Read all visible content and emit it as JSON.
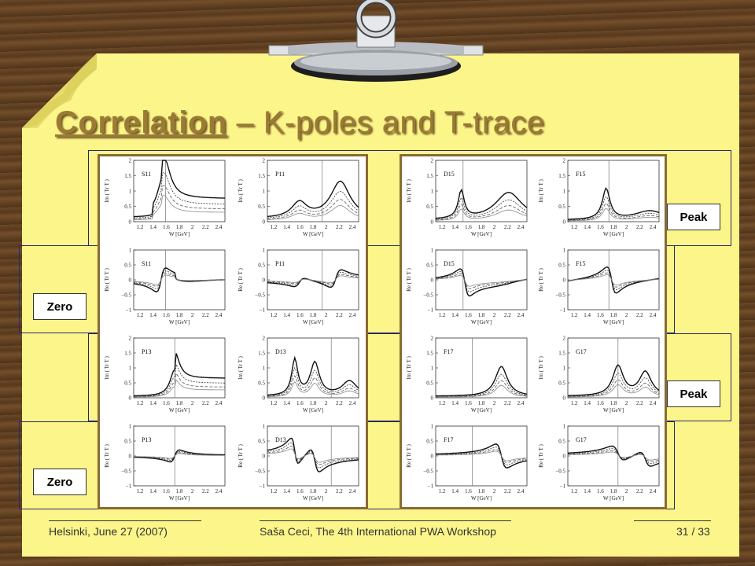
{
  "slide": {
    "title_underlined": "Correlation",
    "title_rest": " – K-poles and T-trace"
  },
  "labels": {
    "peak_top": "Peak",
    "zero_upper": "Zero",
    "peak_lower": "Peak",
    "zero_lower": "Zero"
  },
  "axis": {
    "x_label": "W [GeV]",
    "x_ticks": [
      "1.2",
      "1.4",
      "1.6",
      "1.8",
      "2",
      "2.2",
      "2.4"
    ],
    "im_label": "Im ( Tr  T )",
    "re_label": "Re ( Tr  T )",
    "im_ticks": [
      "2",
      "1.5",
      "1",
      "0.5",
      "0"
    ],
    "re_ticks": [
      "1",
      "0.5",
      "0",
      "−0.5",
      "−1"
    ]
  },
  "panels": {
    "row1": [
      "S11",
      "P11",
      "D15",
      "F15"
    ],
    "row2": [
      "S11",
      "P11",
      "D15",
      "F15"
    ],
    "row3": [
      "P13",
      "D13",
      "F17",
      "G17"
    ],
    "row4": [
      "P13",
      "D13",
      "F17",
      "G17"
    ]
  },
  "footer": {
    "left": "Helsinki, June 27 (2007)",
    "center": "Saša Ceci, The 4th International PWA Workshop",
    "right": "31 / 33"
  }
}
